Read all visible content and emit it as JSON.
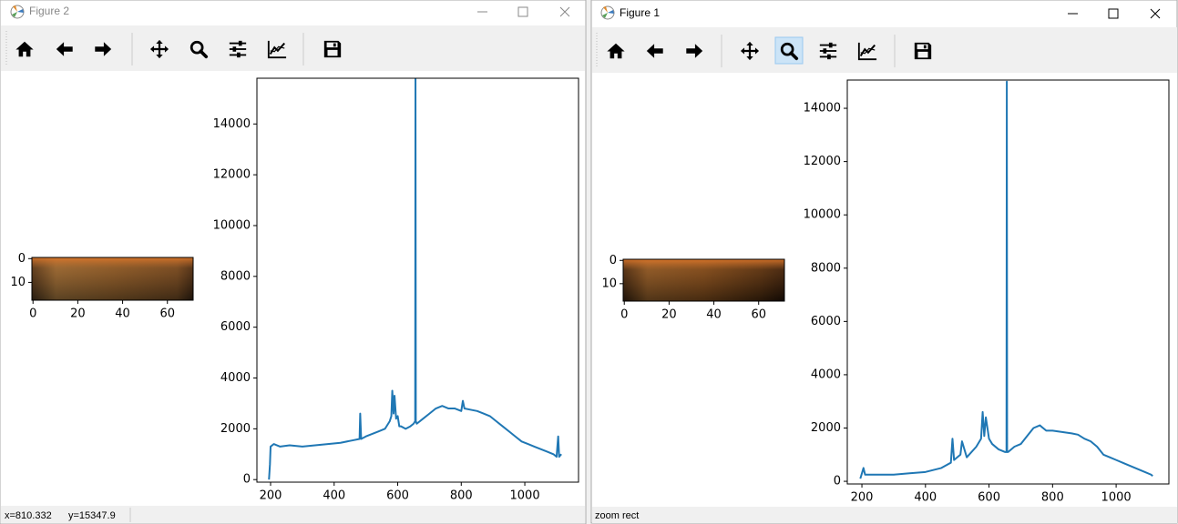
{
  "windows": [
    {
      "title": "Figure 2",
      "status": [
        "x=810.332",
        "y=15347.9"
      ]
    },
    {
      "title": "Figure 1",
      "status": [
        "zoom rect"
      ]
    }
  ],
  "chart_data": [
    {
      "type": "image",
      "xlim": [
        -0.5,
        71.5
      ],
      "ylim": [
        17.5,
        -0.5
      ],
      "xticks": [
        0,
        20,
        40,
        60
      ],
      "yticks": [
        0,
        10
      ]
    },
    {
      "type": "line",
      "color": "#1f77b4",
      "x": [
        195,
        198,
        200,
        210,
        230,
        260,
        300,
        340,
        380,
        420,
        460,
        480,
        482,
        485,
        500,
        520,
        540,
        560,
        575,
        580,
        583,
        587,
        590,
        595,
        600,
        605,
        610,
        625,
        640,
        650,
        655,
        656,
        657,
        660,
        680,
        700,
        720,
        740,
        760,
        780,
        800,
        805,
        810,
        830,
        850,
        870,
        890,
        910,
        930,
        950,
        970,
        990,
        1010,
        1030,
        1050,
        1070,
        1090,
        1100,
        1105,
        1108,
        1115
      ],
      "values": [
        0,
        600,
        1300,
        1400,
        1300,
        1350,
        1300,
        1350,
        1400,
        1450,
        1550,
        1600,
        2600,
        1600,
        1700,
        1800,
        1900,
        2000,
        2300,
        2500,
        3500,
        2600,
        3300,
        2400,
        2500,
        2100,
        2100,
        2000,
        2100,
        2200,
        2300,
        15800,
        2300,
        2200,
        2400,
        2600,
        2800,
        2900,
        2800,
        2800,
        2700,
        3100,
        2800,
        2750,
        2700,
        2600,
        2500,
        2300,
        2100,
        1900,
        1700,
        1500,
        1400,
        1300,
        1200,
        1100,
        1000,
        900,
        1700,
        900,
        1000
      ],
      "xlim": [
        157,
        1169
      ],
      "ylim": [
        -100,
        15800
      ],
      "xticks": [
        200,
        400,
        600,
        800,
        1000
      ],
      "yticks": [
        0,
        2000,
        4000,
        6000,
        8000,
        10000,
        12000,
        14000
      ]
    },
    {
      "type": "image",
      "xlim": [
        -0.5,
        71.5
      ],
      "ylim": [
        17.5,
        -0.5
      ],
      "xticks": [
        0,
        20,
        40,
        60
      ],
      "yticks": [
        0,
        10
      ]
    },
    {
      "type": "line",
      "color": "#1f77b4",
      "x": [
        195,
        200,
        205,
        210,
        230,
        260,
        300,
        350,
        400,
        450,
        480,
        485,
        490,
        510,
        515,
        530,
        560,
        575,
        580,
        585,
        590,
        600,
        610,
        630,
        650,
        655,
        656,
        657,
        660,
        680,
        700,
        720,
        740,
        760,
        780,
        800,
        830,
        860,
        880,
        900,
        920,
        940,
        960,
        980,
        1000,
        1030,
        1060,
        1090,
        1110,
        1115
      ],
      "values": [
        100,
        300,
        500,
        250,
        250,
        250,
        250,
        300,
        350,
        500,
        700,
        1600,
        800,
        1000,
        1500,
        900,
        1300,
        1600,
        2600,
        1700,
        2400,
        1600,
        1400,
        1200,
        1100,
        1100,
        15000,
        1100,
        1100,
        1300,
        1400,
        1700,
        2000,
        2100,
        1900,
        1900,
        1850,
        1800,
        1750,
        1600,
        1500,
        1300,
        1000,
        900,
        800,
        650,
        500,
        350,
        250,
        200
      ],
      "xlim": [
        154,
        1166
      ],
      "ylim": [
        -100,
        15060
      ],
      "xticks": [
        200,
        400,
        600,
        800,
        1000
      ],
      "yticks": [
        0,
        2000,
        4000,
        6000,
        8000,
        10000,
        12000,
        14000
      ]
    }
  ]
}
